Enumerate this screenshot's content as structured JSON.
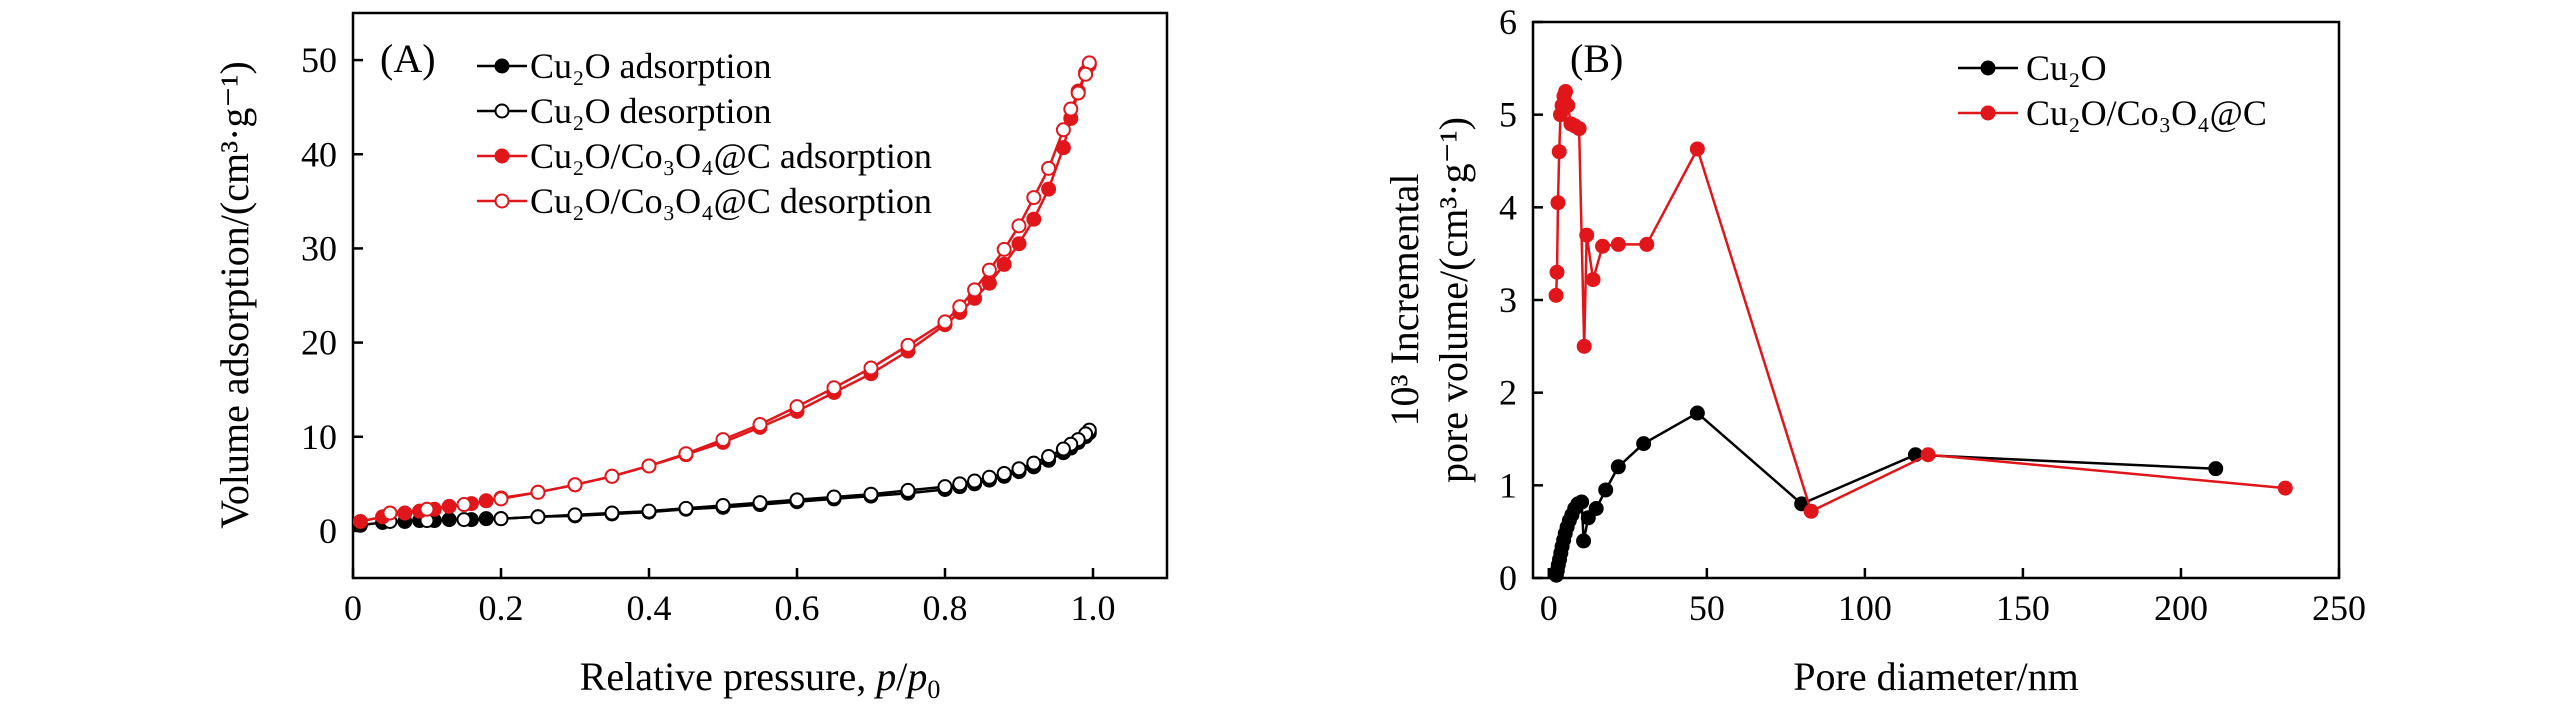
{
  "colors": {
    "black": "#000000",
    "red": "#e0161b"
  },
  "charts": [
    {
      "panel_label": "(A)",
      "chart_data": {
        "type": "line",
        "title": "",
        "xlabel_prefix": "Relative pressure, ",
        "xlabel_p": "p",
        "xlabel_slash": "/",
        "xlabel_p0": "p",
        "xlabel_sub0": "0",
        "ylabel": "Volume adsorption/(cm³·g⁻¹)",
        "xlim": [
          0,
          1.1
        ],
        "ylim": [
          -5,
          55
        ],
        "xticks": [
          0,
          0.2,
          0.4,
          0.6,
          0.8,
          1.0
        ],
        "xtick_labels": [
          "0",
          "0.2",
          "0.4",
          "0.6",
          "0.8",
          "1.0"
        ],
        "yticks": [
          0,
          10,
          20,
          30,
          40,
          50
        ],
        "ytick_labels": [
          "0",
          "10",
          "20",
          "30",
          "40",
          "50"
        ],
        "series": [
          {
            "name": "Cu₂O adsorption",
            "color": "black",
            "marker": "filled",
            "x": [
              0.01,
              0.04,
              0.07,
              0.09,
              0.11,
              0.13,
              0.16,
              0.18,
              0.2,
              0.25,
              0.3,
              0.35,
              0.4,
              0.45,
              0.5,
              0.55,
              0.6,
              0.65,
              0.7,
              0.75,
              0.8,
              0.82,
              0.84,
              0.86,
              0.88,
              0.9,
              0.92,
              0.94,
              0.96,
              0.97,
              0.98,
              0.99,
              0.995
            ],
            "y": [
              0.6,
              0.9,
              1.0,
              1.1,
              1.1,
              1.2,
              1.2,
              1.3,
              1.3,
              1.5,
              1.6,
              1.8,
              2.0,
              2.3,
              2.5,
              2.8,
              3.1,
              3.4,
              3.7,
              4.0,
              4.4,
              4.7,
              5.0,
              5.4,
              5.8,
              6.3,
              6.8,
              7.5,
              8.3,
              8.8,
              9.4,
              10.0,
              10.4
            ]
          },
          {
            "name": "Cu₂O desorption",
            "color": "black",
            "marker": "open",
            "x": [
              0.995,
              0.99,
              0.98,
              0.97,
              0.96,
              0.94,
              0.92,
              0.9,
              0.88,
              0.86,
              0.84,
              0.82,
              0.8,
              0.75,
              0.7,
              0.65,
              0.6,
              0.55,
              0.5,
              0.45,
              0.4,
              0.35,
              0.3,
              0.25,
              0.2,
              0.15,
              0.1,
              0.05
            ],
            "y": [
              10.7,
              10.3,
              9.7,
              9.2,
              8.7,
              7.9,
              7.2,
              6.6,
              6.1,
              5.7,
              5.3,
              5.0,
              4.7,
              4.3,
              3.9,
              3.6,
              3.3,
              3.0,
              2.7,
              2.4,
              2.1,
              1.9,
              1.7,
              1.5,
              1.3,
              1.2,
              1.1,
              1.0
            ]
          },
          {
            "name": "Cu₂O/Co₃O₄@C adsorption",
            "color": "red",
            "marker": "filled",
            "x": [
              0.01,
              0.04,
              0.07,
              0.09,
              0.11,
              0.13,
              0.16,
              0.18,
              0.2,
              0.25,
              0.3,
              0.35,
              0.4,
              0.45,
              0.5,
              0.55,
              0.6,
              0.65,
              0.7,
              0.75,
              0.8,
              0.82,
              0.84,
              0.86,
              0.88,
              0.9,
              0.92,
              0.94,
              0.96,
              0.97,
              0.98,
              0.99,
              0.995
            ],
            "y": [
              1.0,
              1.5,
              1.9,
              2.1,
              2.3,
              2.6,
              2.9,
              3.2,
              3.5,
              4.1,
              4.9,
              5.8,
              6.9,
              8.1,
              9.4,
              11.0,
              12.7,
              14.7,
              16.7,
              19.1,
              21.9,
              23.2,
              24.7,
              26.3,
              28.3,
              30.5,
              33.1,
              36.3,
              40.7,
              43.8,
              46.7,
              48.7,
              49.5
            ]
          },
          {
            "name": "Cu₂O/Co₃O₄@C desorption",
            "color": "red",
            "marker": "open",
            "x": [
              0.995,
              0.99,
              0.98,
              0.97,
              0.96,
              0.94,
              0.92,
              0.9,
              0.88,
              0.86,
              0.84,
              0.82,
              0.8,
              0.75,
              0.7,
              0.65,
              0.6,
              0.55,
              0.5,
              0.45,
              0.4,
              0.35,
              0.3,
              0.25,
              0.2,
              0.15,
              0.1,
              0.05
            ],
            "y": [
              49.7,
              48.5,
              46.5,
              44.8,
              42.6,
              38.5,
              35.4,
              32.4,
              29.9,
              27.7,
              25.6,
              23.8,
              22.2,
              19.7,
              17.3,
              15.2,
              13.2,
              11.3,
              9.7,
              8.2,
              6.9,
              5.8,
              4.9,
              4.1,
              3.4,
              2.8,
              2.3,
              1.9
            ]
          }
        ]
      }
    },
    {
      "panel_label": "(B)",
      "chart_data": {
        "type": "line",
        "title": "",
        "xlabel": "Pore diameter/nm",
        "ylabel_line1": "10³ Incremental",
        "ylabel_line2": "pore volume/(cm³·g⁻¹)",
        "xlim": [
          -5,
          250
        ],
        "ylim": [
          0,
          6
        ],
        "xticks": [
          0,
          50,
          100,
          150,
          200,
          250
        ],
        "xtick_labels": [
          "0",
          "50",
          "100",
          "150",
          "200",
          "250"
        ],
        "yticks": [
          0,
          1,
          2,
          3,
          4,
          5,
          6
        ],
        "ytick_labels": [
          "0",
          "1",
          "2",
          "3",
          "4",
          "5",
          "6"
        ],
        "series": [
          {
            "name": "Cu₂O",
            "color": "black",
            "marker": "filled",
            "x": [
              2.4,
              2.7,
              3.0,
              3.4,
              3.8,
              4.2,
              4.7,
              5.2,
              5.8,
              6.5,
              7.3,
              8.2,
              9.2,
              10.4,
              11.0,
              12.5,
              15.0,
              18.0,
              22.0,
              30.0,
              47.0,
              80.0,
              116.0,
              211.0
            ],
            "y": [
              0.03,
              0.08,
              0.14,
              0.2,
              0.27,
              0.34,
              0.41,
              0.48,
              0.55,
              0.62,
              0.68,
              0.75,
              0.8,
              0.82,
              0.4,
              0.65,
              0.75,
              0.95,
              1.2,
              1.45,
              1.78,
              0.8,
              1.33,
              1.18
            ]
          },
          {
            "name": "Cu₂O/Co₃O₄@C",
            "color": "red",
            "marker": "filled",
            "x": [
              2.3,
              2.6,
              2.9,
              3.3,
              3.7,
              4.2,
              4.8,
              5.3,
              6.0,
              7.0,
              8.2,
              9.6,
              11.2,
              12.0,
              14.0,
              17.0,
              22.0,
              31.0,
              47.0,
              83.0,
              120.0,
              233.0
            ],
            "y": [
              3.05,
              3.3,
              4.05,
              4.6,
              5.0,
              5.1,
              5.2,
              5.25,
              5.1,
              4.9,
              4.88,
              4.85,
              2.5,
              3.7,
              3.22,
              3.58,
              3.6,
              3.6,
              4.63,
              0.72,
              1.33,
              0.97
            ]
          }
        ]
      }
    }
  ]
}
